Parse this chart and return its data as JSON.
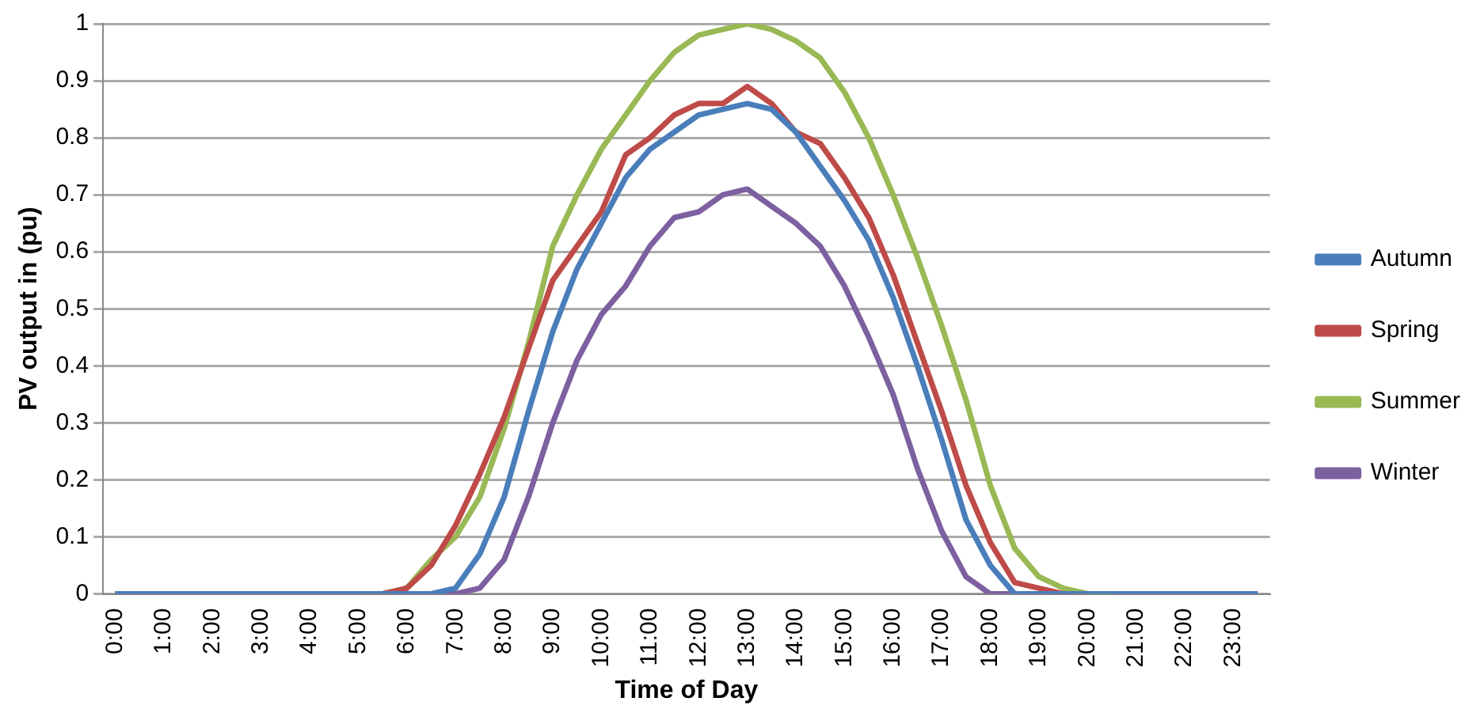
{
  "chart_data": {
    "type": "line",
    "xlabel": "Time of Day",
    "ylabel": "PV output in (pu)",
    "categories": [
      "0:00",
      null,
      "1:00",
      null,
      "2:00",
      null,
      "3:00",
      null,
      "4:00",
      null,
      "5:00",
      null,
      "6:00",
      null,
      "7:00",
      null,
      "8:00",
      null,
      "9:00",
      null,
      "10:00",
      null,
      "11:00",
      null,
      "12:00",
      null,
      "13:00",
      null,
      "14:00",
      null,
      "15:00",
      null,
      "16:00",
      null,
      "17:00",
      null,
      "18:00",
      null,
      "19:00",
      null,
      "20:00",
      null,
      "21:00",
      null,
      "22:00",
      null,
      "23:00",
      null
    ],
    "series": [
      {
        "name": "Autumn",
        "color": "#4a7ebb",
        "values": [
          0,
          0,
          0,
          0,
          0,
          0,
          0,
          0,
          0,
          0,
          0,
          0,
          0,
          0,
          0.01,
          0.07,
          0.17,
          0.32,
          0.46,
          0.57,
          0.65,
          0.73,
          0.78,
          0.81,
          0.84,
          0.85,
          0.86,
          0.85,
          0.81,
          0.75,
          0.69,
          0.62,
          0.52,
          0.4,
          0.27,
          0.13,
          0.05,
          0,
          0,
          0,
          0,
          0,
          0,
          0,
          0,
          0,
          0,
          0
        ]
      },
      {
        "name": "Spring",
        "color": "#be4b48",
        "values": [
          null,
          null,
          null,
          null,
          null,
          null,
          null,
          null,
          null,
          null,
          0,
          0,
          0.01,
          0.05,
          0.12,
          0.21,
          0.31,
          0.43,
          0.55,
          0.61,
          0.67,
          0.77,
          0.8,
          0.84,
          0.86,
          0.86,
          0.89,
          0.86,
          0.81,
          0.79,
          0.73,
          0.66,
          0.56,
          0.44,
          0.32,
          0.19,
          0.09,
          0.02,
          0.01,
          0,
          0,
          null,
          null,
          null,
          null,
          null,
          null,
          null
        ]
      },
      {
        "name": "Summer",
        "color": "#98b954",
        "values": [
          null,
          null,
          null,
          null,
          null,
          null,
          null,
          null,
          null,
          null,
          0,
          0,
          0.01,
          0.06,
          0.1,
          0.17,
          0.29,
          0.44,
          0.61,
          0.7,
          0.78,
          0.84,
          0.9,
          0.95,
          0.98,
          0.99,
          1,
          0.99,
          0.97,
          0.94,
          0.88,
          0.8,
          0.7,
          0.59,
          0.47,
          0.34,
          0.19,
          0.08,
          0.03,
          0.01,
          0,
          0,
          null,
          null,
          null,
          null,
          null,
          null
        ]
      },
      {
        "name": "Winter",
        "color": "#7d60a0",
        "values": [
          0,
          0,
          0,
          0,
          0,
          0,
          0,
          0,
          0,
          0,
          0,
          0,
          0,
          0,
          0,
          0.01,
          0.06,
          0.17,
          0.3,
          0.41,
          0.49,
          0.54,
          0.61,
          0.66,
          0.67,
          0.7,
          0.71,
          0.68,
          0.65,
          0.61,
          0.54,
          0.45,
          0.35,
          0.22,
          0.11,
          0.03,
          0,
          0,
          0,
          0,
          0,
          0,
          0,
          0,
          0,
          0,
          0,
          0
        ]
      }
    ],
    "ylim": [
      0,
      1
    ],
    "yticks": [
      0,
      0.1,
      0.2,
      0.3,
      0.4,
      0.5,
      0.6,
      0.7,
      0.8,
      0.9,
      1
    ],
    "grid": "y",
    "legend": "right",
    "marker": "none",
    "line_style": "solid"
  }
}
